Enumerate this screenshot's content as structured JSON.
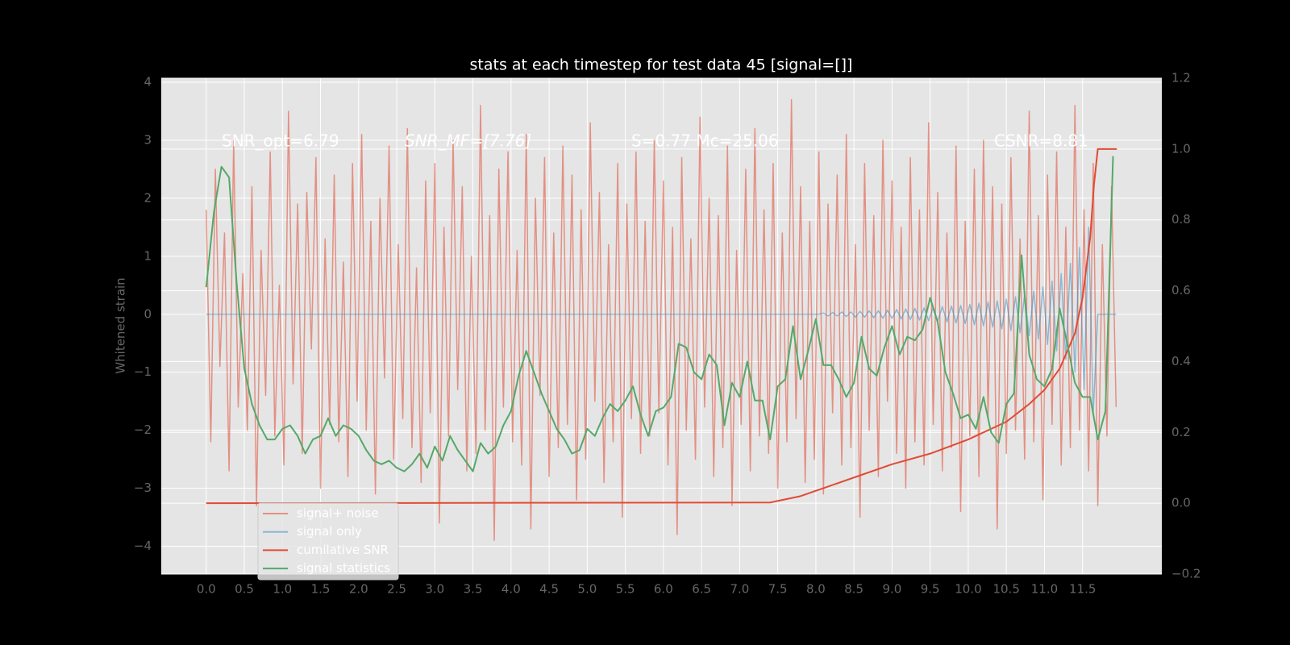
{
  "chart_data": {
    "type": "line",
    "title": "stats at each timestep for test data 45 [signal=[]]",
    "ylabel": "Whitened strain",
    "annotations": [
      "SNR_opt=6.79",
      "SNR_MF=[7.76]",
      "S=0.77  Mc=25.06",
      "CSNR=8.81"
    ],
    "xlim": [
      -0.59,
      12.54
    ],
    "ylim": [
      -4.48,
      4.07
    ],
    "y2lim": [
      -0.2,
      1.2
    ],
    "xticks": [
      {
        "value": 0,
        "label": "0.0"
      },
      0.5,
      {
        "value": 1,
        "label": "1.0"
      },
      1.5,
      {
        "value": 2,
        "label": "2.0"
      },
      2.5,
      {
        "value": 3,
        "label": "3.0"
      },
      3.5,
      {
        "value": 4,
        "label": "4.0"
      },
      4.5,
      {
        "value": 5,
        "label": "5.0"
      },
      5.5,
      {
        "value": 6,
        "label": "6.0"
      },
      6.5,
      {
        "value": 7,
        "label": "7.0"
      },
      7.5,
      {
        "value": 8,
        "label": "8.0"
      },
      8.5,
      {
        "value": 9,
        "label": "9.0"
      },
      9.5,
      {
        "value": 10,
        "label": "10.0"
      },
      10.5,
      {
        "value": 11,
        "label": "11.0"
      },
      11.5
    ],
    "yticks": [
      {
        "value": -4,
        "label": "−4"
      },
      {
        "value": -3,
        "label": "−3"
      },
      {
        "value": -2,
        "label": "−2"
      },
      {
        "value": -1,
        "label": "−1"
      },
      0,
      1,
      2,
      3,
      4
    ],
    "y2ticks": [
      {
        "value": -0.2,
        "label": "−0.2"
      },
      {
        "value": 0,
        "label": "0.0"
      },
      0.2,
      0.4,
      0.6,
      0.8,
      {
        "value": 1,
        "label": "1.0"
      },
      1.2
    ],
    "grid": true,
    "legend": "lower left",
    "x": [
      0,
      0.06,
      0.12,
      0.18,
      0.24,
      0.3,
      0.36,
      0.42,
      0.48,
      0.54,
      0.6,
      0.66,
      0.72,
      0.78,
      0.84,
      0.9,
      0.96,
      1.02,
      1.08,
      1.14,
      1.2,
      1.26,
      1.32,
      1.38,
      1.44,
      1.5,
      1.56,
      1.62,
      1.68,
      1.74,
      1.8,
      1.86,
      1.92,
      1.98,
      2.04,
      2.1,
      2.16,
      2.22,
      2.28,
      2.34,
      2.4,
      2.46,
      2.52,
      2.58,
      2.64,
      2.7,
      2.76,
      2.82,
      2.88,
      2.94,
      3,
      3.06,
      3.12,
      3.18,
      3.24,
      3.3,
      3.36,
      3.42,
      3.48,
      3.54,
      3.6,
      3.66,
      3.72,
      3.78,
      3.84,
      3.9,
      3.96,
      4.02,
      4.08,
      4.14,
      4.2,
      4.26,
      4.32,
      4.38,
      4.44,
      4.5,
      4.56,
      4.62,
      4.68,
      4.74,
      4.8,
      4.86,
      4.92,
      4.98,
      5.04,
      5.1,
      5.16,
      5.22,
      5.28,
      5.34,
      5.4,
      5.46,
      5.52,
      5.58,
      5.64,
      5.7,
      5.76,
      5.82,
      5.88,
      5.94,
      6,
      6.06,
      6.12,
      6.18,
      6.24,
      6.3,
      6.36,
      6.42,
      6.48,
      6.54,
      6.6,
      6.66,
      6.72,
      6.78,
      6.84,
      6.9,
      6.96,
      7.02,
      7.08,
      7.14,
      7.2,
      7.26,
      7.32,
      7.38,
      7.44,
      7.5,
      7.56,
      7.62,
      7.68,
      7.74,
      7.8,
      7.86,
      7.92,
      7.98,
      8.04,
      8.1,
      8.16,
      8.22,
      8.28,
      8.34,
      8.4,
      8.46,
      8.52,
      8.58,
      8.64,
      8.7,
      8.76,
      8.82,
      8.88,
      8.94,
      9,
      9.06,
      9.12,
      9.18,
      9.24,
      9.3,
      9.36,
      9.42,
      9.48,
      9.54,
      9.6,
      9.66,
      9.72,
      9.78,
      9.84,
      9.9,
      9.96,
      10.02,
      10.08,
      10.14,
      10.2,
      10.26,
      10.32,
      10.38,
      10.44,
      10.5,
      10.56,
      10.62,
      10.68,
      10.74,
      10.8,
      10.86,
      10.92,
      10.98,
      11.04,
      11.1,
      11.16,
      11.22,
      11.28,
      11.34,
      11.4,
      11.46,
      11.52,
      11.58,
      11.64,
      11.7,
      11.76,
      11.82,
      11.88,
      11.94
    ],
    "series": [
      {
        "name": "signal+ noise",
        "color": "#E24A33",
        "alpha": 0.55,
        "values": [
          1.8,
          -2.2,
          2.5,
          -0.9,
          1.4,
          -2.7,
          3.0,
          -1.6,
          0.7,
          -2.0,
          2.2,
          -3.3,
          1.1,
          -1.4,
          2.8,
          -2.1,
          0.5,
          -2.6,
          3.5,
          -1.2,
          1.9,
          -2.4,
          2.1,
          -0.6,
          2.7,
          -3.0,
          1.3,
          -1.9,
          2.4,
          -2.2,
          0.9,
          -2.8,
          2.6,
          -1.5,
          3.1,
          -2.0,
          1.6,
          -3.1,
          2.0,
          -1.1,
          2.9,
          -2.5,
          1.2,
          -1.8,
          3.2,
          -2.3,
          0.8,
          -2.9,
          2.3,
          -1.7,
          2.6,
          -3.6,
          1.5,
          -2.1,
          3.0,
          -1.3,
          2.2,
          -2.7,
          1.0,
          -2.4,
          3.6,
          -2.0,
          1.7,
          -3.9,
          2.5,
          -1.6,
          2.8,
          -2.2,
          1.1,
          -2.6,
          3.1,
          -3.7,
          2.0,
          -1.4,
          2.7,
          -2.8,
          1.4,
          -2.3,
          2.9,
          -1.9,
          2.4,
          -3.2,
          1.8,
          -2.5,
          3.3,
          -1.5,
          2.1,
          -2.9,
          1.2,
          -2.2,
          2.6,
          -3.5,
          1.9,
          -1.8,
          2.8,
          -2.4,
          1.6,
          -2.1,
          3.0,
          -1.7,
          2.3,
          -2.6,
          1.5,
          -3.8,
          2.7,
          -2.0,
          1.3,
          -2.5,
          3.4,
          -1.6,
          2.0,
          -2.8,
          1.7,
          -2.3,
          2.9,
          -3.3,
          1.1,
          -1.9,
          2.5,
          -2.7,
          3.2,
          -2.1,
          1.8,
          -2.4,
          2.6,
          -3.0,
          1.4,
          -2.2,
          3.7,
          -1.8,
          2.2,
          -2.9,
          1.6,
          -2.5,
          2.8,
          -3.1,
          1.9,
          -1.7,
          2.4,
          -2.6,
          3.1,
          -2.3,
          1.2,
          -3.5,
          2.6,
          -2.0,
          1.7,
          -2.8,
          3.0,
          -1.5,
          2.3,
          -2.4,
          1.5,
          -3.0,
          2.7,
          -2.2,
          1.8,
          -2.6,
          3.3,
          -1.9,
          2.1,
          -2.7,
          1.4,
          -2.3,
          2.9,
          -3.4,
          1.6,
          -2.1,
          2.5,
          -2.8,
          3.0,
          -1.8,
          2.2,
          -3.7,
          1.9,
          -2.4,
          2.7,
          -2.0,
          1.3,
          -2.5,
          3.5,
          -2.2,
          1.7,
          -3.2,
          2.4,
          -1.9,
          2.8,
          -2.6,
          1.5,
          -2.3,
          3.6,
          -2.0,
          1.8,
          -2.7,
          2.6,
          -3.3,
          1.2,
          -2.1,
          2.2,
          -1.6
        ]
      },
      {
        "name": "signal only",
        "color": "#348ABD",
        "alpha": 0.5,
        "values": [
          0,
          0,
          0,
          0,
          0,
          0,
          0,
          0,
          0,
          0,
          0,
          0,
          0,
          0,
          0,
          0,
          0,
          0,
          0,
          0,
          0,
          0,
          0,
          0,
          0,
          0,
          0,
          0,
          0,
          0,
          0,
          0,
          0,
          0,
          0,
          0,
          0,
          0,
          0,
          0,
          0,
          0,
          0,
          0,
          0,
          0,
          0,
          0,
          0,
          0,
          0,
          0,
          0,
          0,
          0,
          0,
          0,
          0,
          0,
          0,
          0,
          0,
          0,
          0,
          0,
          0,
          0,
          0,
          0,
          0,
          0,
          0,
          0,
          0,
          0,
          0,
          0,
          0,
          0,
          0,
          0,
          0,
          0,
          0,
          0,
          0,
          0,
          0,
          0,
          0,
          0,
          0,
          0,
          0,
          0,
          0,
          0,
          0,
          0,
          0,
          0,
          0,
          0,
          0,
          0,
          0,
          0,
          0,
          0,
          0,
          0,
          0,
          0,
          0,
          0,
          0,
          0,
          0,
          0,
          0,
          0,
          0,
          0,
          0,
          0,
          0,
          0,
          0,
          0,
          0,
          0,
          0,
          0,
          0,
          0,
          0.02,
          -0.03,
          0.03,
          -0.03,
          0.04,
          -0.04,
          0.04,
          -0.05,
          0.05,
          -0.05,
          0.06,
          -0.06,
          0.06,
          -0.07,
          0.07,
          -0.07,
          0.08,
          -0.08,
          0.09,
          -0.09,
          0.1,
          -0.1,
          0.11,
          -0.11,
          0.12,
          -0.12,
          0.13,
          -0.13,
          0.14,
          -0.15,
          0.15,
          -0.16,
          0.17,
          -0.18,
          0.19,
          -0.2,
          0.21,
          -0.22,
          0.23,
          -0.25,
          0.26,
          -0.28,
          0.3,
          -0.32,
          0.34,
          -0.37,
          0.4,
          -0.43,
          0.47,
          -0.52,
          0.57,
          -0.63,
          0.7,
          -0.78,
          0.88,
          -1.0,
          1.15,
          -1.3,
          1.5,
          -1.7,
          0,
          0,
          0,
          0,
          0
        ]
      },
      {
        "name": "cumilative SNR",
        "color": "#E24A33",
        "axis": "y2",
        "x": [
          0,
          7.4,
          7.8,
          8.2,
          8.6,
          9.0,
          9.5,
          10.0,
          10.5,
          10.8,
          11.0,
          11.2,
          11.4,
          11.5,
          11.6,
          11.65,
          11.7,
          11.95
        ],
        "values": [
          0,
          0.002,
          0.02,
          0.05,
          0.08,
          0.11,
          0.14,
          0.18,
          0.23,
          0.28,
          0.32,
          0.38,
          0.48,
          0.58,
          0.75,
          0.9,
          1.0,
          1.0
        ]
      },
      {
        "name": "signal statistics",
        "color": "#55A868",
        "axis": "y2",
        "x": [
          0,
          0.1,
          0.2,
          0.3,
          0.4,
          0.5,
          0.6,
          0.7,
          0.8,
          0.9,
          1,
          1.1,
          1.2,
          1.3,
          1.4,
          1.5,
          1.6,
          1.7,
          1.8,
          1.9,
          2,
          2.1,
          2.2,
          2.3,
          2.4,
          2.5,
          2.6,
          2.7,
          2.8,
          2.9,
          3,
          3.1,
          3.2,
          3.3,
          3.4,
          3.5,
          3.6,
          3.7,
          3.8,
          3.9,
          4,
          4.1,
          4.2,
          4.3,
          4.4,
          4.5,
          4.6,
          4.7,
          4.8,
          4.9,
          5,
          5.1,
          5.2,
          5.3,
          5.4,
          5.5,
          5.6,
          5.7,
          5.8,
          5.9,
          6,
          6.1,
          6.2,
          6.3,
          6.4,
          6.5,
          6.6,
          6.7,
          6.8,
          6.9,
          7,
          7.1,
          7.2,
          7.3,
          7.4,
          7.5,
          7.6,
          7.7,
          7.8,
          7.9,
          8,
          8.1,
          8.2,
          8.3,
          8.4,
          8.5,
          8.6,
          8.7,
          8.8,
          8.9,
          9,
          9.1,
          9.2,
          9.3,
          9.4,
          9.5,
          9.6,
          9.7,
          9.8,
          9.9,
          10,
          10.1,
          10.2,
          10.3,
          10.4,
          10.5,
          10.6,
          10.7,
          10.8,
          10.9,
          11,
          11.1,
          11.2,
          11.3,
          11.4,
          11.5,
          11.6,
          11.7,
          11.8,
          11.9
        ],
        "values": [
          0.61,
          0.82,
          0.95,
          0.92,
          0.62,
          0.38,
          0.28,
          0.22,
          0.18,
          0.18,
          0.21,
          0.22,
          0.19,
          0.14,
          0.18,
          0.19,
          0.24,
          0.19,
          0.22,
          0.21,
          0.19,
          0.15,
          0.12,
          0.11,
          0.12,
          0.1,
          0.09,
          0.11,
          0.14,
          0.1,
          0.16,
          0.12,
          0.19,
          0.15,
          0.12,
          0.09,
          0.17,
          0.14,
          0.16,
          0.22,
          0.26,
          0.36,
          0.43,
          0.37,
          0.31,
          0.26,
          0.21,
          0.18,
          0.14,
          0.15,
          0.21,
          0.19,
          0.24,
          0.28,
          0.26,
          0.29,
          0.33,
          0.25,
          0.19,
          0.26,
          0.27,
          0.3,
          0.45,
          0.44,
          0.37,
          0.35,
          0.42,
          0.39,
          0.22,
          0.34,
          0.3,
          0.4,
          0.29,
          0.29,
          0.18,
          0.33,
          0.35,
          0.5,
          0.35,
          0.43,
          0.52,
          0.39,
          0.39,
          0.35,
          0.3,
          0.34,
          0.47,
          0.38,
          0.36,
          0.44,
          0.5,
          0.42,
          0.47,
          0.46,
          0.49,
          0.58,
          0.51,
          0.37,
          0.31,
          0.24,
          0.25,
          0.21,
          0.3,
          0.2,
          0.17,
          0.28,
          0.31,
          0.7,
          0.42,
          0.35,
          0.33,
          0.38,
          0.55,
          0.45,
          0.34,
          0.3,
          0.3,
          0.18,
          0.26,
          0.98
        ]
      }
    ]
  }
}
